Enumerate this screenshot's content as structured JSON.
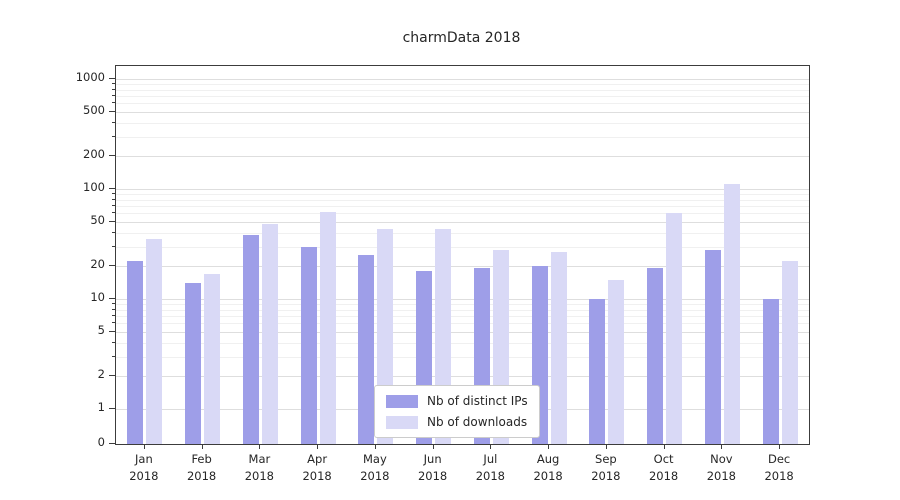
{
  "chart_data": {
    "type": "bar",
    "title": "charmData 2018",
    "categories": [
      "Jan",
      "Feb",
      "Mar",
      "Apr",
      "May",
      "Jun",
      "Jul",
      "Aug",
      "Sep",
      "Oct",
      "Nov",
      "Dec"
    ],
    "year_label": "2018",
    "series": [
      {
        "name": "Nb of distinct IPs",
        "color": "#9e9ee8",
        "values": [
          22,
          14,
          38,
          30,
          25,
          18,
          19,
          20,
          10,
          19,
          28,
          10
        ]
      },
      {
        "name": "Nb of downloads",
        "color": "#d9d9f6",
        "values": [
          35,
          17,
          48,
          62,
          43,
          43,
          28,
          27,
          15,
          60,
          110,
          22
        ]
      }
    ],
    "y_ticks": [
      0,
      1,
      2,
      5,
      10,
      20,
      50,
      100,
      200,
      500,
      1000
    ],
    "y_scale": "symlog",
    "ylim": [
      0,
      1070
    ],
    "grid": true,
    "legend_position": "lower center"
  }
}
